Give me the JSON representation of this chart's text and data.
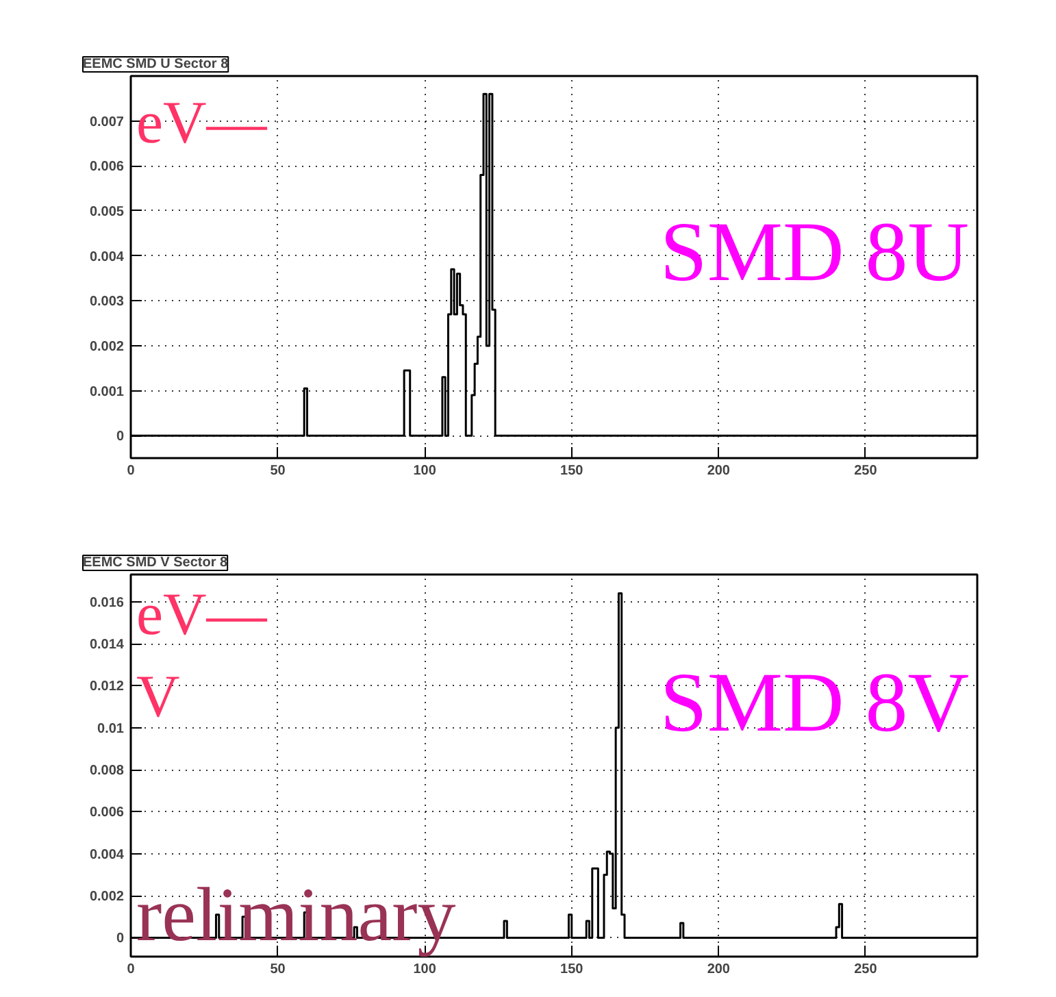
{
  "chart_data": [
    {
      "type": "histogram",
      "title": "EEMC SMD U Sector 8",
      "annotations": [
        "SMD 8U",
        "eV—"
      ],
      "xlim": [
        0,
        288
      ],
      "ylim": [
        -0.0005,
        0.008
      ],
      "xticks": [
        0,
        50,
        100,
        150,
        200,
        250
      ],
      "yticks": [
        0,
        0.001,
        0.002,
        0.003,
        0.004,
        0.005,
        0.006,
        0.007
      ],
      "grid": true,
      "bins": [
        0,
        59,
        60,
        93,
        95,
        106,
        107,
        108,
        109,
        110,
        111,
        112,
        113,
        114,
        116,
        117,
        118,
        119,
        120,
        121,
        122,
        123,
        124,
        288
      ],
      "values": [
        0,
        0.00105,
        0,
        0.00145,
        0,
        0.0013,
        0,
        0.0027,
        0.0037,
        0.0027,
        0.0036,
        0.0029,
        0.0027,
        0,
        0.0009,
        0.0016,
        0.0022,
        0.0058,
        0.0076,
        0.002,
        0.0076,
        0.0028,
        0
      ],
      "color": "#000000"
    },
    {
      "type": "histogram",
      "title": "EEMC SMD V Sector 8",
      "annotations": [
        "SMD 8V",
        "eV—",
        "V",
        "reliminary"
      ],
      "xlim": [
        0,
        288
      ],
      "ylim": [
        -0.0009,
        0.0173
      ],
      "xticks": [
        0,
        50,
        100,
        150,
        200,
        250
      ],
      "yticks": [
        0,
        0.002,
        0.004,
        0.006,
        0.008,
        0.01,
        0.012,
        0.014,
        0.016
      ],
      "grid": true,
      "bins": [
        0,
        29,
        30,
        38,
        39,
        59,
        60,
        76,
        77,
        127,
        128,
        149,
        150,
        155,
        156,
        157,
        159,
        161,
        162,
        163,
        164,
        165,
        166,
        167,
        168,
        187,
        188,
        240,
        241,
        242,
        288
      ],
      "values": [
        0,
        0.0011,
        0,
        0.001,
        0,
        0.0012,
        0,
        0.0005,
        0,
        0.0008,
        0,
        0.0011,
        0,
        0.0008,
        0,
        0.0033,
        0,
        0.003,
        0.0041,
        0.004,
        0.0014,
        0.01,
        0.0164,
        0.0011,
        0,
        0.0007,
        0,
        0.0005,
        0.0016,
        0
      ],
      "color": "#000000"
    }
  ]
}
